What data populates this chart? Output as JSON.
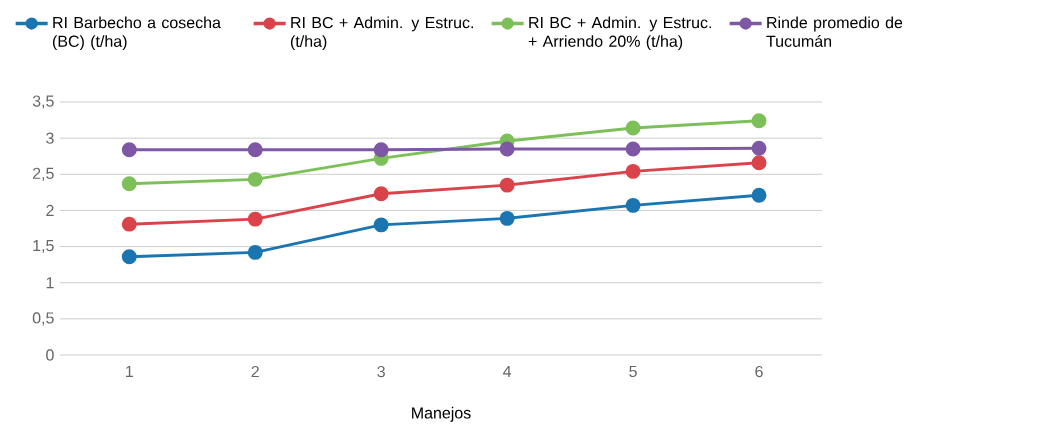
{
  "chart_data": {
    "type": "line",
    "xlabel": "Manejos",
    "categories": [
      "1",
      "2",
      "3",
      "4",
      "5",
      "6"
    ],
    "series": [
      {
        "name": "RI Barbecho a cosecha (BC) (t/ha)",
        "color": "#1a75b0",
        "values": [
          1.36,
          1.42,
          1.8,
          1.89,
          2.07,
          2.21
        ]
      },
      {
        "name": "RI BC + Admin. y Estruc. (t/ha)",
        "color": "#d9434a",
        "values": [
          1.81,
          1.88,
          2.23,
          2.35,
          2.54,
          2.66
        ]
      },
      {
        "name": "RI BC + Admin. y Estruc. + Arriendo 20% (t/ha)",
        "color": "#7dc05a",
        "values": [
          2.37,
          2.43,
          2.72,
          2.96,
          3.14,
          3.24
        ]
      },
      {
        "name": "Rinde promedio de Tucumán",
        "color": "#7e57a5",
        "values": [
          2.84,
          2.84,
          2.84,
          2.85,
          2.85,
          2.86
        ]
      }
    ],
    "ylim": [
      0,
      3.5
    ],
    "yticks": [
      0,
      {
        "value": 0.5,
        "label": "0,5"
      },
      1,
      {
        "value": 1.5,
        "label": "1,5"
      },
      2,
      {
        "value": 2.5,
        "label": "2,5"
      },
      3,
      {
        "value": 3.5,
        "label": "3,5"
      }
    ],
    "grid": "y",
    "legend": "top",
    "marker": "circle",
    "line_style": "solid"
  }
}
